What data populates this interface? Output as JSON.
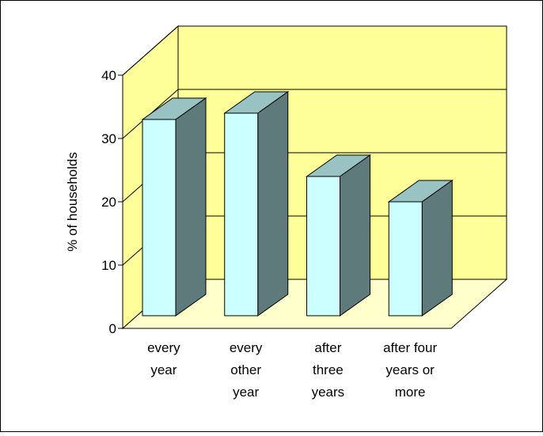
{
  "chart_data": {
    "type": "bar",
    "title": "",
    "xlabel": "",
    "ylabel": "% of households",
    "categories": [
      [
        "every",
        "year"
      ],
      [
        "every",
        "other",
        "year"
      ],
      [
        "after",
        "three",
        "years"
      ],
      [
        "after four",
        "years or",
        "more"
      ]
    ],
    "values": [
      31,
      32,
      22,
      18
    ],
    "ylim": [
      0,
      40
    ],
    "yticks": [
      0,
      10,
      20,
      30,
      40
    ],
    "grid": true,
    "style": "3d",
    "colors": {
      "wall": "#ffff99",
      "floor": "#ffffcc",
      "bar_front": "#ccffff",
      "bar_top": "#99c2c2",
      "bar_side": "#5e7a7a"
    }
  }
}
